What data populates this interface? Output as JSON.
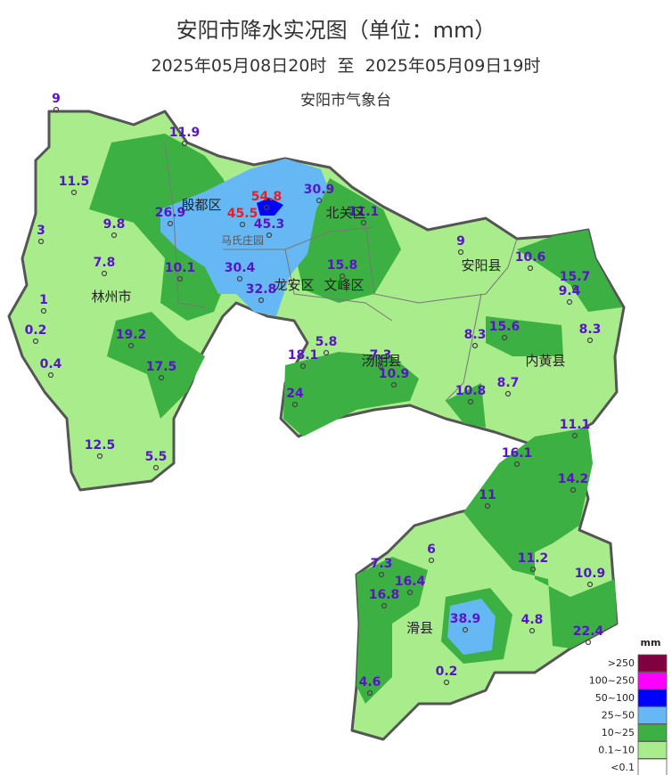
{
  "header": {
    "title": "安阳市降水实况图（单位：mm）",
    "subtitle": "2025年05月08日20时  至  2025年05月09日19时",
    "agency": "安阳市气象台"
  },
  "stations": [
    "9",
    "11.9",
    "11.5",
    "26.9",
    "54.8",
    "45.5",
    "45.3",
    "30.9",
    "11.1",
    "9.8",
    "3",
    "7.8",
    "10.1",
    "30.4",
    "32.8",
    "15.8",
    "9",
    "10.6",
    "15.7",
    "9.4",
    "1",
    "0.2",
    "19.2",
    "8.3",
    "15.6",
    "8.3",
    "5.8",
    "18.1",
    "7.3",
    "10.9",
    "0.4",
    "17.5",
    "8.7",
    "24",
    "10.8",
    "11.1",
    "12.5",
    "5.5",
    "16.1",
    "14.2",
    "11",
    "6",
    "7.3",
    "11.2",
    "10.9",
    "16.4",
    "16.8",
    "38.9",
    "4.8",
    "22.4",
    "4.6",
    "0.2"
  ],
  "districts": [
    "殷都区",
    "北关区",
    "马氏庄园",
    "龙安区",
    "文峰区",
    "林州市",
    "安阳县",
    "汤阴县",
    "内黄县",
    "滑县"
  ],
  "legend": {
    "unit": "mm",
    "items": [
      ">250",
      "100~250",
      "50~100",
      "25~50",
      "10~25",
      "0.1~10",
      "<0.1"
    ]
  }
}
